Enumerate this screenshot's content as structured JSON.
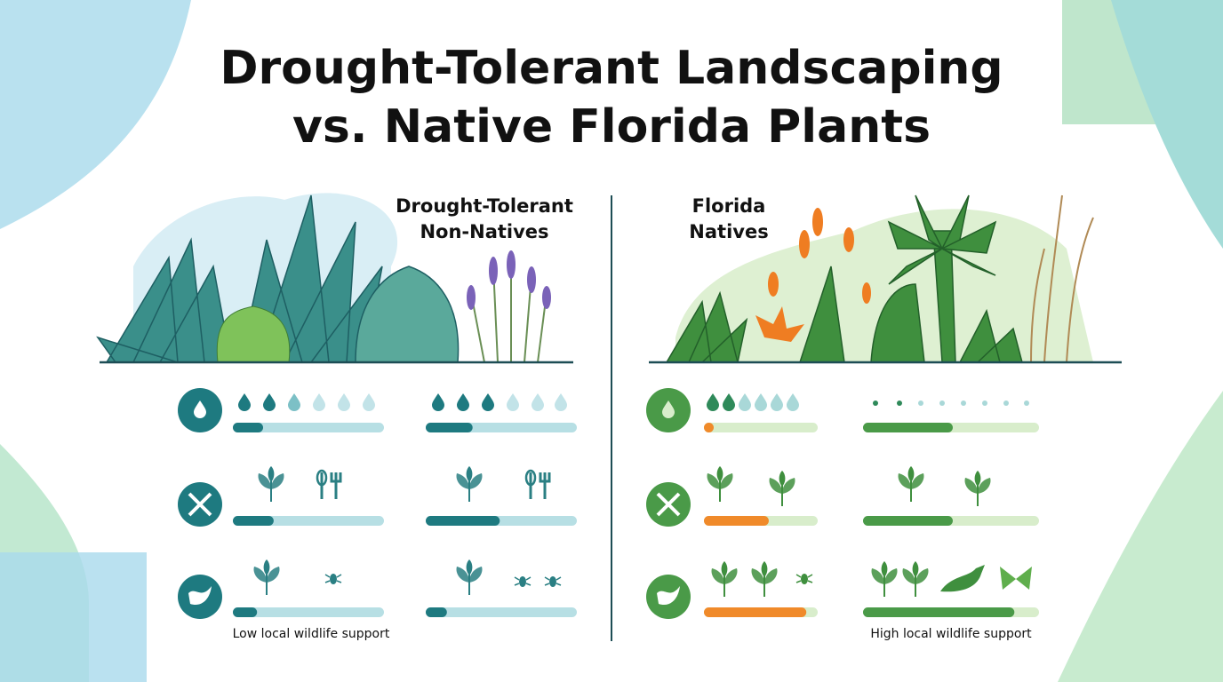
{
  "title": [
    "Drought-Tolerant Landscaping",
    "vs. Native Florida Plants"
  ],
  "panels": [
    {
      "label": [
        "Drought-Tolerant",
        "Non-Natives"
      ],
      "note": "Low local wildlife support",
      "fills": [
        "#1e7a80",
        "#1e7a80"
      ],
      "tracks": [
        "#b7dfe4",
        "#b7dfe4"
      ],
      "rows": [
        [
          0.2,
          0.31
        ],
        [
          0.27,
          0.49
        ],
        [
          0.16,
          0.14
        ]
      ]
    },
    {
      "label": [
        "Florida",
        "Natives"
      ],
      "note": "High local wildlife support",
      "fills": [
        "#f08a2a",
        "#4a9a48"
      ],
      "tracks": [
        "#d8edcb",
        "#d8edcb"
      ],
      "rows": [
        [
          0.05,
          0.51
        ],
        [
          0.57,
          0.51
        ],
        [
          0.9,
          0.86
        ]
      ]
    }
  ]
}
